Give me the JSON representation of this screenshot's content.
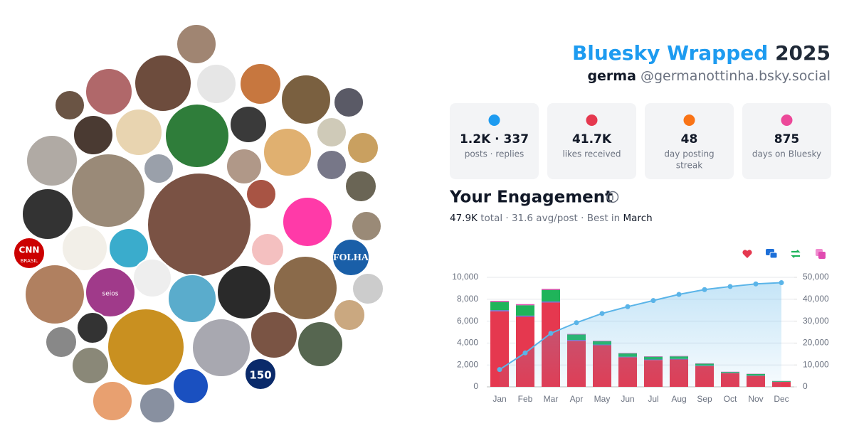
{
  "header": {
    "brand": "Bluesky Wrapped",
    "year": "2025",
    "name": "germa",
    "handle": "@germanottinha.bsky.social"
  },
  "avatar_texts": [
    "CNN",
    "BRASIL",
    "FOLHA",
    "seios",
    "150"
  ],
  "stats": [
    {
      "value": "1.2K · 337",
      "label": "posts · replies"
    },
    {
      "value": "41.7K",
      "label": "likes received"
    },
    {
      "value": "48",
      "label": "day posting",
      "label2": "streak"
    },
    {
      "value": "875",
      "label": "days on Bluesky"
    }
  ],
  "engagement": {
    "title": "Your Engagement",
    "total": "47.9K",
    "summary": "total · 31.6 avg/post · Best in",
    "best": "March"
  },
  "chart_data": {
    "type": "bar",
    "stacked": true,
    "categories": [
      "Jan",
      "Feb",
      "Mar",
      "Apr",
      "May",
      "Jun",
      "Jul",
      "Aug",
      "Sep",
      "Oct",
      "Nov",
      "Dec"
    ],
    "series": [
      {
        "color": "#e5384f",
        "values": [
          6900,
          6400,
          7700,
          4200,
          3800,
          2700,
          2450,
          2500,
          1900,
          1250,
          1000,
          450
        ]
      },
      {
        "color": "#6a6ad8",
        "values": [
          100,
          100,
          100,
          80,
          60,
          50,
          50,
          50,
          40,
          30,
          30,
          20
        ]
      },
      {
        "color": "#1fb45a",
        "values": [
          750,
          950,
          1050,
          500,
          300,
          300,
          250,
          230,
          180,
          80,
          150,
          60
        ]
      },
      {
        "color": "#e04bb0",
        "values": [
          100,
          100,
          100,
          50,
          50,
          40,
          40,
          40,
          30,
          20,
          20,
          10
        ]
      },
      {
        "color": "#5ab4e8",
        "axis": "y2",
        "values": [
          7900,
          15500,
          24450,
          29300,
          33500,
          36600,
          39400,
          42200,
          44400,
          45800,
          47000,
          47550
        ]
      }
    ],
    "ylim": [
      0,
      10000
    ],
    "yticks": [
      0,
      {
        "value": 2000,
        "label": "2,000"
      },
      {
        "value": 4000,
        "label": "4,000"
      },
      {
        "value": 6000,
        "label": "6,000"
      },
      {
        "value": 8000,
        "label": "8,000"
      },
      {
        "value": 10000,
        "label": "10,000"
      }
    ],
    "y2lim": [
      0,
      50000
    ],
    "y2ticks": [
      0,
      {
        "value": 10000,
        "label": "10,000"
      },
      {
        "value": 20000,
        "label": "20,000"
      },
      {
        "value": 30000,
        "label": "30,000"
      },
      {
        "value": 40000,
        "label": "40,000"
      },
      {
        "value": 50000,
        "label": "50,000"
      }
    ],
    "grid": true
  }
}
